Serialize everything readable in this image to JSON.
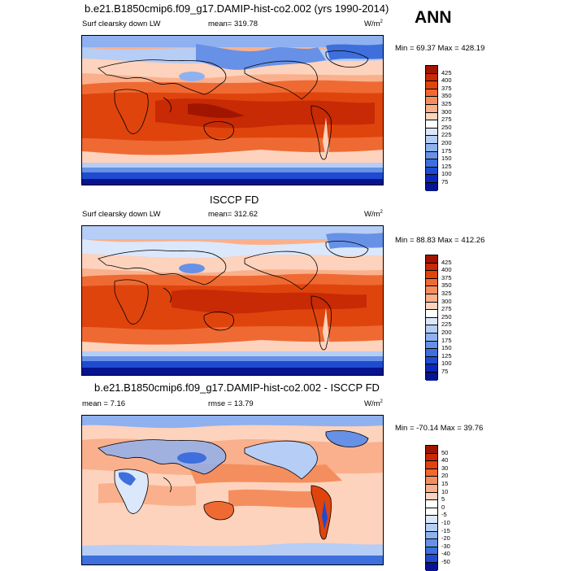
{
  "season": "ANN",
  "panels": [
    {
      "title": "b.e21.B1850cmip6.f09_g17.DAMIP-hist-co2.002 (yrs 1990-2014)",
      "left_label": "Surf clearsky down LW",
      "center_label": "mean= 319.78",
      "units": "W/m",
      "units_sup": "2",
      "minmax": "Min =  69.37 Max = 428.19",
      "levels": [
        "425",
        "400",
        "375",
        "350",
        "325",
        "300",
        "275",
        "250",
        "225",
        "200",
        "175",
        "150",
        "125",
        "100",
        "75"
      ],
      "colors": [
        "#a01500",
        "#c72a04",
        "#e0440d",
        "#ef6a33",
        "#f58e5e",
        "#fab08c",
        "#fdd3bd",
        "#ffffff",
        "#dbe7fb",
        "#b6cdf6",
        "#8fb1ef",
        "#6691e6",
        "#3e6fdc",
        "#1e4bd0",
        "#0b28b8",
        "#06148f"
      ]
    },
    {
      "title": "ISCCP FD",
      "left_label": "Surf clearsky down LW",
      "center_label": "mean= 312.62",
      "units": "W/m",
      "units_sup": "2",
      "minmax": "Min =  88.83 Max = 412.26",
      "levels": [
        "425",
        "400",
        "375",
        "350",
        "325",
        "300",
        "275",
        "250",
        "225",
        "200",
        "175",
        "150",
        "125",
        "100",
        "75"
      ],
      "colors": [
        "#a01500",
        "#c72a04",
        "#e0440d",
        "#ef6a33",
        "#f58e5e",
        "#fab08c",
        "#fdd3bd",
        "#ffffff",
        "#dbe7fb",
        "#b6cdf6",
        "#8fb1ef",
        "#6691e6",
        "#3e6fdc",
        "#1e4bd0",
        "#0b28b8",
        "#06148f"
      ]
    },
    {
      "title": "b.e21.B1850cmip6.f09_g17.DAMIP-hist-co2.002 - ISCCP FD",
      "left_label": "mean =   7.16",
      "center_label": "rmse =  13.79",
      "units": "W/m",
      "units_sup": "2",
      "minmax": "Min = -70.14 Max =  39.76",
      "levels": [
        "50",
        "40",
        "30",
        "20",
        "15",
        "10",
        "5",
        "0",
        "-5",
        "-10",
        "-15",
        "-20",
        "-30",
        "-40",
        "-50"
      ],
      "colors": [
        "#a01500",
        "#c72a04",
        "#e0440d",
        "#ef6a33",
        "#f58e5e",
        "#fab08c",
        "#fdd3bd",
        "#ffffff",
        "#ffffff",
        "#dbe7fb",
        "#b6cdf6",
        "#8fb1ef",
        "#6691e6",
        "#3e6fdc",
        "#1e4bd0",
        "#06148f"
      ]
    }
  ]
}
